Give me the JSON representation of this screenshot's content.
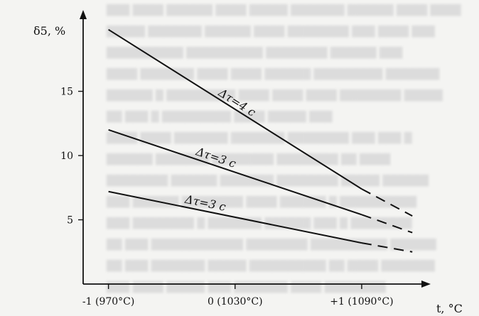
{
  "chart_data": {
    "type": "line",
    "ylabel": "δ5, %",
    "xlabel": "t, °C",
    "xlim": [
      -1.2,
      1.5
    ],
    "ylim": [
      0,
      21
    ],
    "grid": false,
    "y_ticks": [
      {
        "value": 5,
        "label": "5"
      },
      {
        "value": 10,
        "label": "10"
      },
      {
        "value": 15,
        "label": "15"
      }
    ],
    "x_ticks": [
      {
        "value": -1,
        "label": "-1 (970°C)"
      },
      {
        "value": 0,
        "label": "0 (1030°C)"
      },
      {
        "value": 1,
        "label": "+1 (1090°C)"
      }
    ],
    "series": [
      {
        "label": "Δτ=4 c",
        "x": [
          -1,
          1.0
        ],
        "y": [
          19.8,
          7.4
        ],
        "extrapolated_to": [
          1.4,
          5.3
        ]
      },
      {
        "label": "Δτ=3 c",
        "x": [
          -1,
          1.0
        ],
        "y": [
          12.0,
          5.4
        ],
        "extrapolated_to": [
          1.4,
          4.0
        ]
      },
      {
        "label": "Δτ=3 c",
        "x": [
          -1,
          1.0
        ],
        "y": [
          7.2,
          3.2
        ],
        "extrapolated_to": [
          1.4,
          2.5
        ]
      }
    ]
  }
}
